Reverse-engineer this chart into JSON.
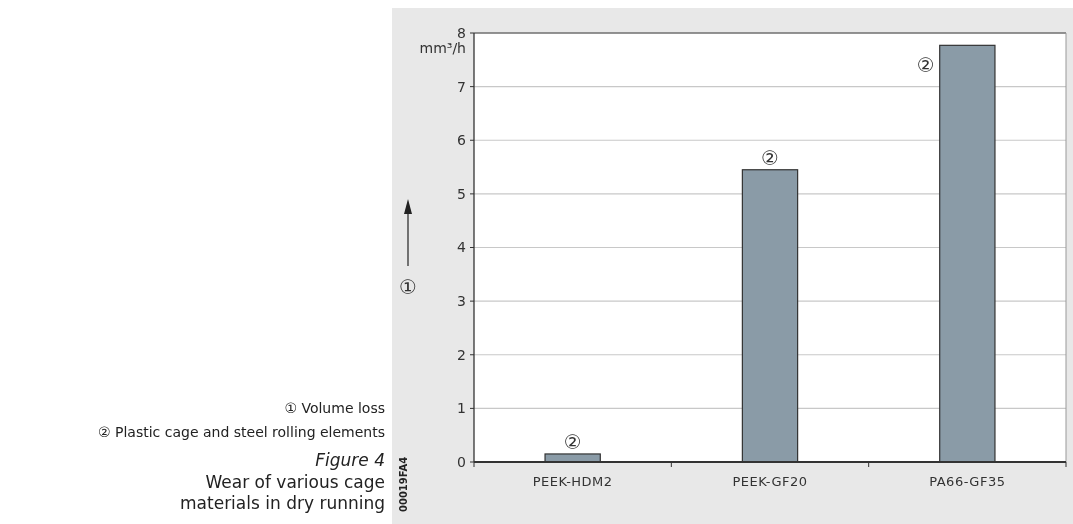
{
  "chart_data": {
    "type": "bar",
    "title": "Wear of various cage materials in dry running",
    "subtitle": "Figure 4",
    "ylabel": "①",
    "categories": [
      "PEEK-HDM2",
      "PEEK-GF20",
      "PA66-GF35"
    ],
    "values": [
      0.15,
      5.45,
      7.77
    ],
    "color": "#8a9ba7",
    "ylim": [
      0,
      8
    ],
    "yticks": [
      0,
      1,
      2,
      3,
      4,
      5,
      6,
      7,
      8
    ],
    "grid": "y",
    "annotations": [
      "mm³/h",
      "① Volume loss",
      "② Plastic cage and steel rolling elements",
      "00019FA4",
      {
        "text": "②",
        "x": "PEEK-HDM2",
        "y": 0.15
      },
      {
        "text": "②",
        "x": "PEEK-GF20",
        "y": 5.45
      },
      {
        "text": "②",
        "x": "PA66-GF35",
        "y": 7.77
      }
    ]
  }
}
